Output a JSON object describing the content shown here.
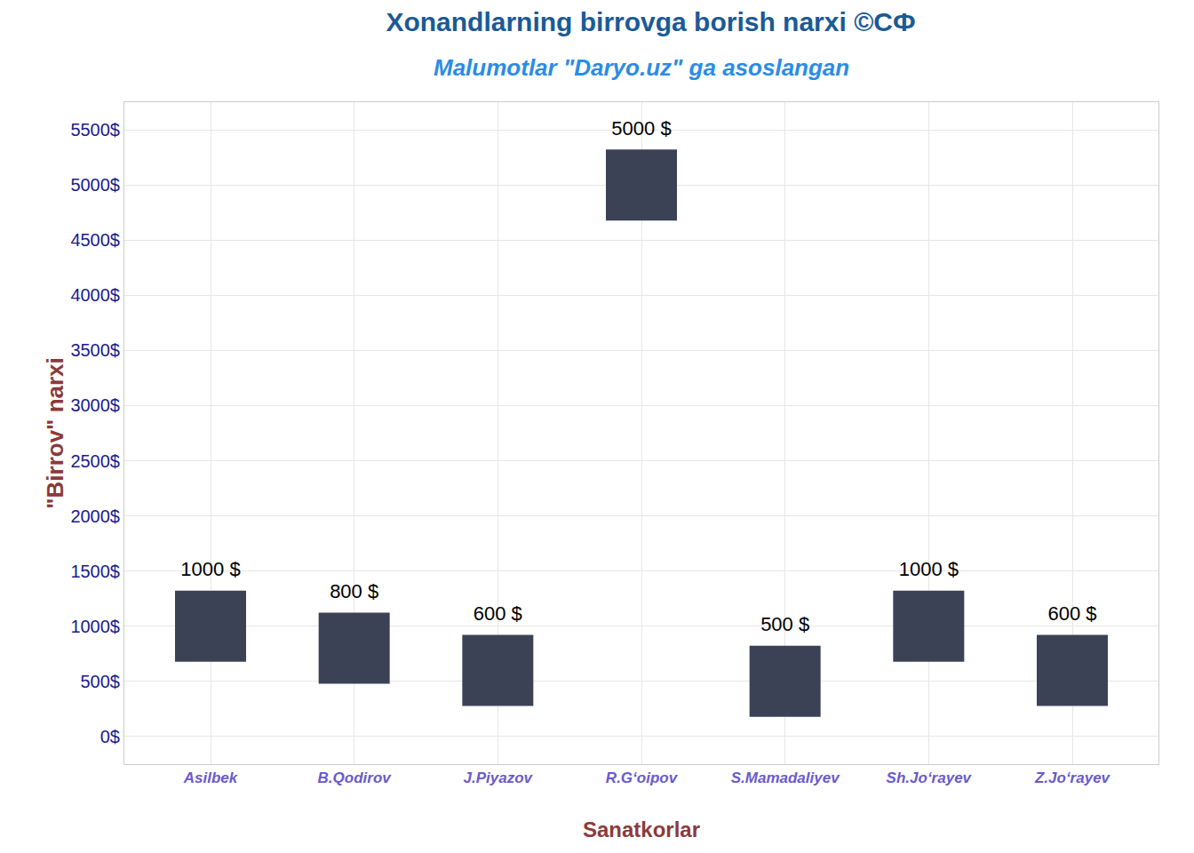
{
  "chart_data": {
    "type": "scatter",
    "title": "Xonandlarning birrovga borish narxi ©СФ",
    "subtitle": "Malumotlar \"Daryo.uz\" ga asoslangan",
    "x_label": "Sanatkorlar",
    "y_label": "\"Birrov\" narxi",
    "categories": [
      "Asilbek",
      "B.Qodirov",
      "J.Piyazov",
      "R.G‘oipov",
      "S.Mamadaliyev",
      "Sh.Jo‘rayev",
      "Z.Jo‘rayev"
    ],
    "values": [
      1000,
      800,
      600,
      5000,
      500,
      1000,
      600
    ],
    "value_labels": [
      "1000 $",
      "800 $",
      "600 $",
      "5000 $",
      "500 $",
      "1000 $",
      "600 $"
    ],
    "data_labels": true,
    "marker": "square",
    "color": "#3b4256",
    "ylim": [
      -250,
      5750
    ],
    "yticks": [
      {
        "value": 0,
        "label": "0$"
      },
      {
        "value": 500,
        "label": "500$"
      },
      {
        "value": 1000,
        "label": "1000$"
      },
      {
        "value": 1500,
        "label": "1500$"
      },
      {
        "value": 2000,
        "label": "2000$"
      },
      {
        "value": 2500,
        "label": "2500$"
      },
      {
        "value": 3000,
        "label": "3000$"
      },
      {
        "value": 3500,
        "label": "3500$"
      },
      {
        "value": 4000,
        "label": "4000$"
      },
      {
        "value": 4500,
        "label": "4500$"
      },
      {
        "value": 5000,
        "label": "5000$"
      },
      {
        "value": 5500,
        "label": "5500$"
      }
    ],
    "grid": true
  }
}
